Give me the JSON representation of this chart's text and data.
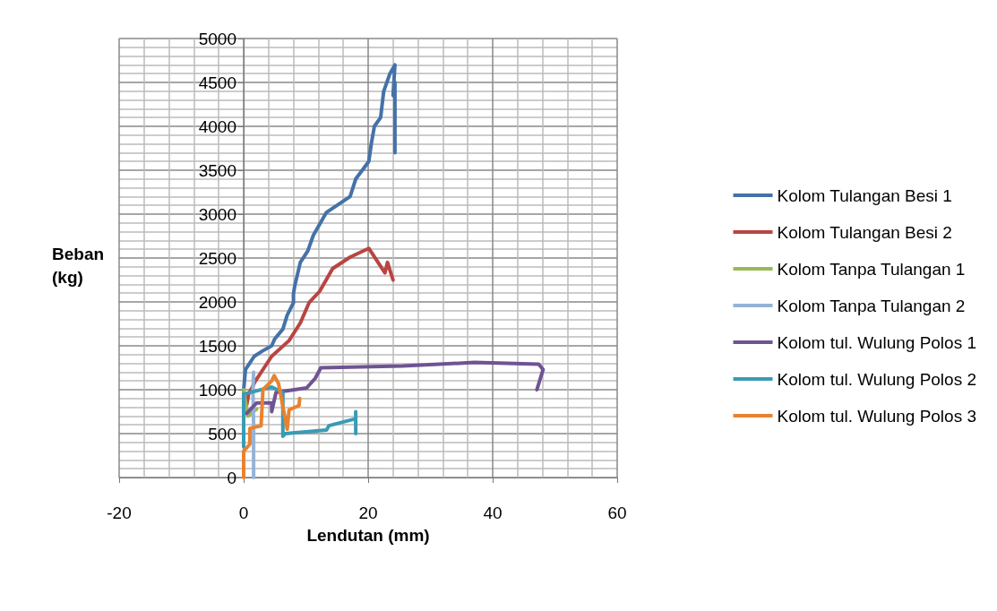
{
  "chart_data": {
    "type": "line",
    "xlabel": "Lendutan (mm)",
    "ylabel": "Beban (kg)",
    "xlim": [
      -20,
      60
    ],
    "xticks": [
      -20,
      0,
      20,
      40,
      60
    ],
    "ylim": [
      0,
      5000
    ],
    "yticks": [
      0,
      500,
      1000,
      1500,
      2000,
      2500,
      3000,
      3500,
      4000,
      4500,
      5000
    ],
    "grid": true,
    "legend": "right",
    "marker": "none",
    "line_style": "solid",
    "series": [
      {
        "name": "Kolom Tulangan Besi 1",
        "color": "#4472a8",
        "x": [
          0,
          0,
          0.3,
          1.7,
          3,
          4.5,
          5,
          6.3,
          7,
          8,
          8,
          8.2,
          9.1,
          10.3,
          11.2,
          13.3,
          17.1,
          18,
          20.1,
          20.5,
          21,
          22,
          22.5,
          23.5,
          24.3,
          24,
          24.3,
          24.3
        ],
        "values": [
          950,
          1000,
          1230,
          1380,
          1440,
          1500,
          1580,
          1690,
          1850,
          1990,
          2090,
          2180,
          2450,
          2580,
          2760,
          3020,
          3200,
          3400,
          3600,
          3800,
          4000,
          4100,
          4400,
          4600,
          4700,
          4350,
          4500,
          3700
        ]
      },
      {
        "name": "Kolom Tulangan Besi 2",
        "color": "#b84542",
        "x": [
          0.5,
          0.8,
          1.9,
          4.5,
          7.3,
          9.1,
          10.5,
          12.2,
          14.3,
          17.1,
          20.1,
          22.7,
          23.1,
          24
        ],
        "values": [
          830,
          950,
          1100,
          1380,
          1560,
          1760,
          1990,
          2120,
          2380,
          2510,
          2610,
          2330,
          2450,
          2250
        ]
      },
      {
        "name": "Kolom Tanpa Tulangan 1",
        "color": "#98b954",
        "x": [
          0,
          0.2,
          0.7,
          1.5,
          2.1
        ],
        "values": [
          1000,
          900,
          700,
          750,
          780
        ]
      },
      {
        "name": "Kolom Tanpa Tulangan 2",
        "color": "#95b3d7",
        "x": [
          1.6,
          1.6,
          1.5,
          1.6
        ],
        "values": [
          0,
          600,
          1000,
          1200
        ]
      },
      {
        "name": "Kolom tul. Wulung Polos 1",
        "color": "#6f5393",
        "x": [
          0.5,
          2.1,
          4.5,
          4.5,
          5.2,
          10.1,
          11.5,
          12.4,
          25.5,
          37.1,
          47.4,
          48.1,
          47.1
        ],
        "values": [
          730,
          850,
          850,
          750,
          970,
          1020,
          1130,
          1250,
          1270,
          1310,
          1290,
          1230,
          1000
        ]
      },
      {
        "name": "Kolom tul. Wulung Polos 2",
        "color": "#3a9bb4",
        "x": [
          0,
          0,
          4.5,
          6.3,
          6.3,
          6.7,
          13.3,
          13.7,
          18,
          18,
          18
        ],
        "values": [
          350,
          950,
          1030,
          970,
          470,
          500,
          540,
          590,
          670,
          750,
          500
        ]
      },
      {
        "name": "Kolom tul. Wulung Polos 3",
        "color": "#e9822f",
        "x": [
          0,
          0,
          1,
          1,
          2.8,
          3.1,
          4.5,
          4.9,
          5.6,
          7,
          7.3,
          8.9,
          9
        ],
        "values": [
          0,
          300,
          380,
          560,
          590,
          1000,
          1100,
          1160,
          1070,
          550,
          770,
          820,
          900
        ]
      }
    ]
  }
}
